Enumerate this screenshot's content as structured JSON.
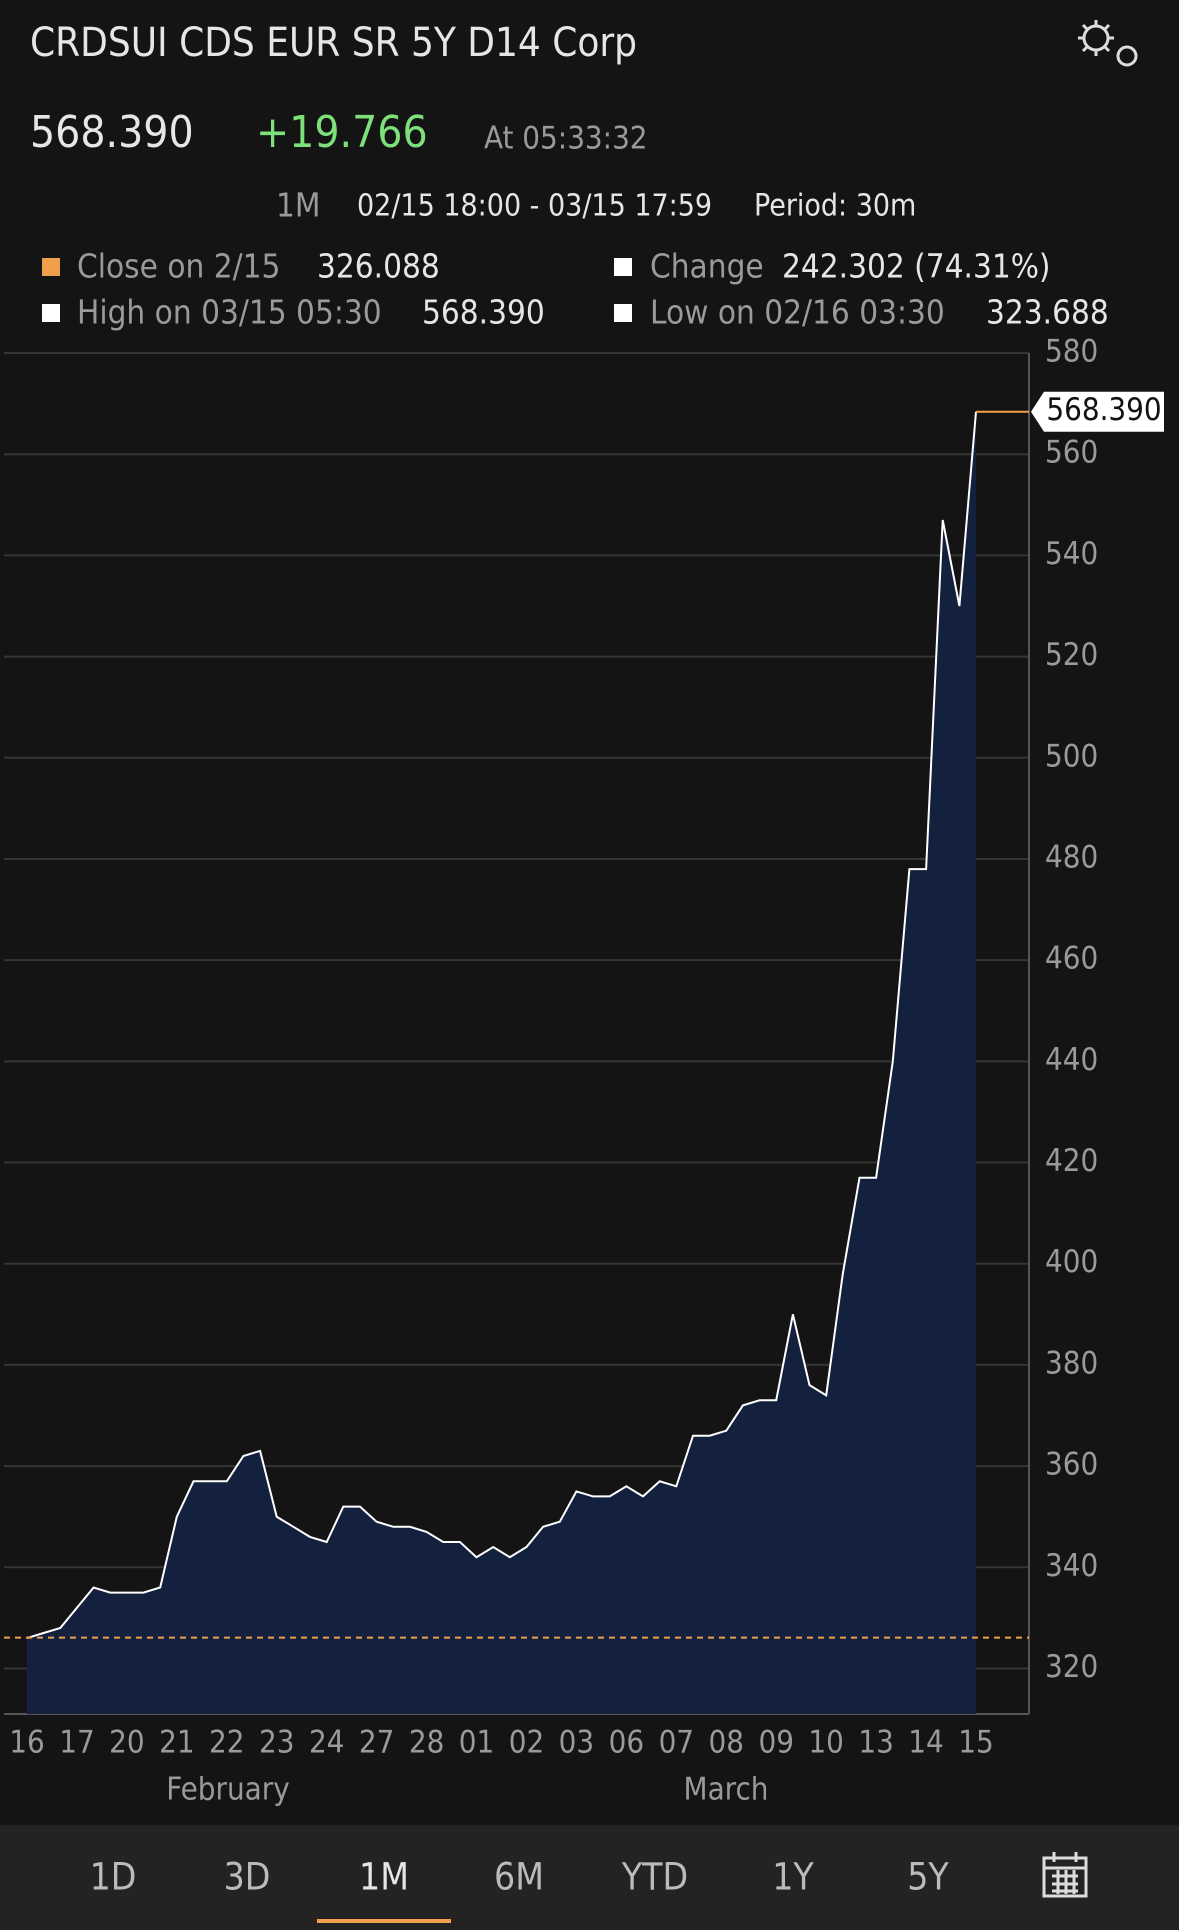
{
  "header": {
    "title": "CRDSUI CDS EUR SR 5Y D14 Corp",
    "price": "568.390",
    "change": "+19.766",
    "time": "At 05:33:32",
    "range": "1M",
    "dates": "02/15 18:00 - 03/15 17:59",
    "period": "Period: 30m",
    "stats": [
      {
        "label": "Close on 2/15",
        "value": "326.088"
      },
      {
        "label": "Change",
        "value": "242.302 (74.31%)"
      },
      {
        "label": "High on 03/15 05:30",
        "value": "568.390"
      },
      {
        "label": "Low on 02/16 03:30",
        "value": "323.688"
      }
    ]
  },
  "chart_data": {
    "type": "area",
    "categories": [
      "16",
      null,
      null,
      "17",
      null,
      null,
      "20",
      null,
      null,
      "21",
      null,
      null,
      "22",
      null,
      null,
      "23",
      null,
      null,
      "24",
      null,
      null,
      "27",
      null,
      null,
      "28",
      null,
      null,
      "01",
      null,
      null,
      "02",
      null,
      null,
      "03",
      null,
      null,
      "06",
      null,
      null,
      "07",
      null,
      null,
      "08",
      null,
      null,
      "09",
      null,
      null,
      "10",
      null,
      null,
      "13",
      null,
      null,
      "14",
      null,
      null,
      "15"
    ],
    "months": [
      "February",
      "March"
    ],
    "series": [
      {
        "color": "#ffffff",
        "fill": "#13213f",
        "values": [
          326,
          327,
          328,
          332,
          336,
          335,
          335,
          335,
          336,
          350,
          357,
          357,
          357,
          362,
          363,
          350,
          348,
          346,
          345,
          352,
          352,
          349,
          348,
          348,
          347,
          345,
          345,
          342,
          344,
          342,
          344,
          348,
          349,
          355,
          354,
          354,
          356,
          354,
          357,
          356,
          366,
          366,
          367,
          372,
          373,
          373,
          390,
          376,
          374,
          398,
          417,
          417,
          440,
          478,
          478,
          547,
          530,
          568.39
        ],
        "value_labels": [
          null,
          null,
          null,
          null,
          null,
          null,
          null,
          null,
          null,
          null,
          null,
          null,
          null,
          null,
          null,
          null,
          null,
          null,
          null,
          null,
          null,
          null,
          null,
          null,
          null,
          null,
          null,
          null,
          null,
          null,
          null,
          null,
          null,
          null,
          null,
          null,
          null,
          null,
          null,
          null,
          null,
          null,
          null,
          null,
          null,
          null,
          null,
          null,
          null,
          null,
          null,
          null,
          null,
          null,
          null,
          null,
          null,
          "568.390"
        ]
      }
    ],
    "reference_line": {
      "value": 326.088,
      "color": "#f0a04b"
    },
    "ylim": [
      311,
      580
    ],
    "yticks": [
      320,
      340,
      360,
      380,
      400,
      420,
      440,
      460,
      480,
      500,
      520,
      540,
      560,
      580
    ],
    "grid": true
  },
  "tabs": [
    "1D",
    "3D",
    "1M",
    "6M",
    "YTD",
    "1Y",
    "5Y"
  ],
  "active_tab": 2
}
